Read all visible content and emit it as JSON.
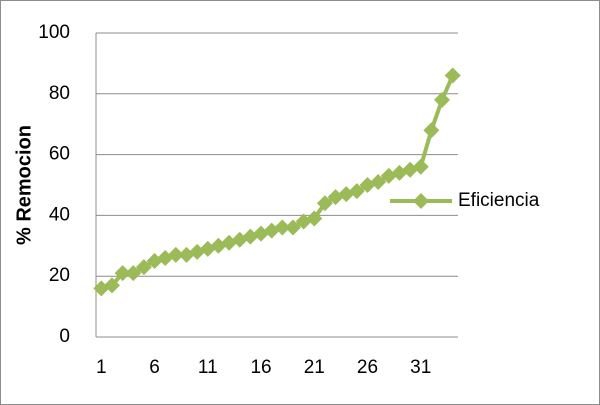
{
  "chart_data": {
    "type": "line",
    "y_label": "% Remocion",
    "categories": [
      1,
      null,
      null,
      null,
      null,
      6,
      null,
      null,
      null,
      null,
      11,
      null,
      null,
      null,
      null,
      16,
      null,
      null,
      null,
      null,
      21,
      null,
      null,
      null,
      null,
      26,
      null,
      null,
      null,
      null,
      31,
      null,
      null,
      null
    ],
    "series": [
      {
        "name": "Eficiencia",
        "color": "#9bbb59",
        "values": [
          16,
          17,
          21,
          21,
          23,
          25,
          26,
          27,
          27,
          28,
          29,
          30,
          31,
          32,
          33,
          34,
          35,
          36,
          36,
          38,
          39,
          44,
          46,
          47,
          48,
          50,
          51,
          53,
          54,
          55,
          56,
          68,
          78,
          86
        ]
      }
    ],
    "ylim": [
      0,
      100
    ],
    "yticks": [
      0,
      20,
      40,
      60,
      80,
      100
    ],
    "grid": true,
    "legend": "right"
  }
}
